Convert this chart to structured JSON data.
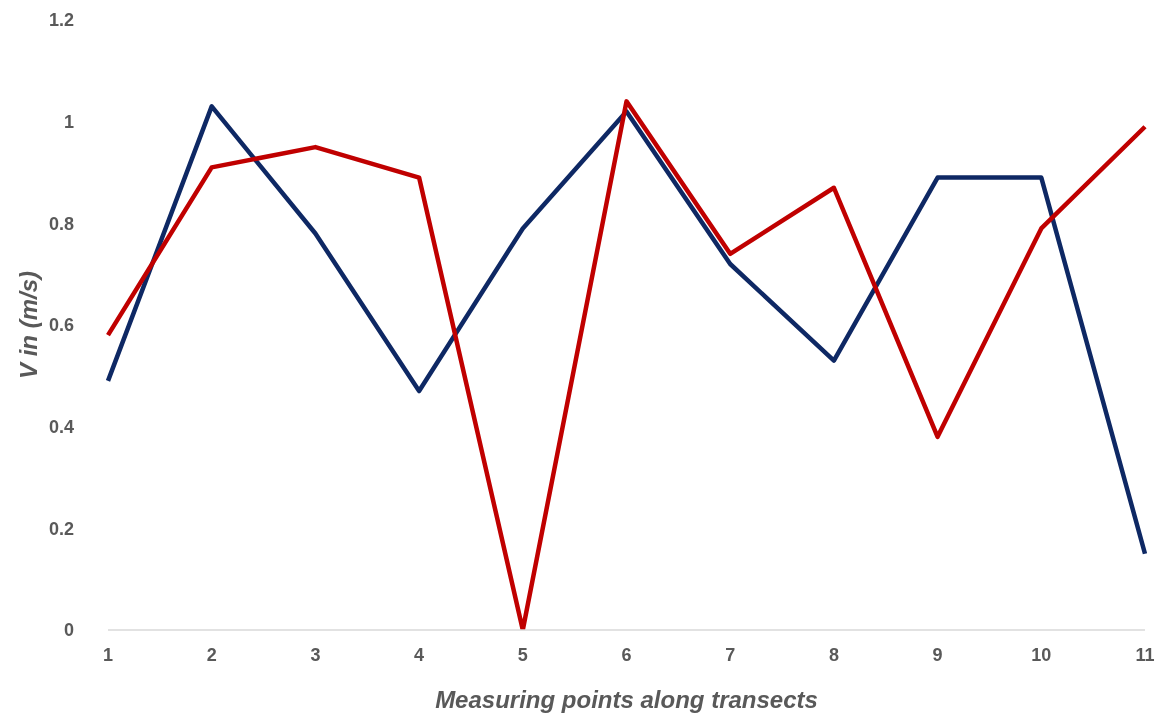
{
  "chart_data": {
    "type": "line",
    "xlabel": "Measuring points along transects",
    "ylabel": "V in (m/s)",
    "categories": [
      "1",
      "2",
      "3",
      "4",
      "5",
      "6",
      "7",
      "8",
      "9",
      "10",
      "11"
    ],
    "series": [
      {
        "color": "#0e2864",
        "values": [
          0.49,
          1.03,
          0.78,
          0.47,
          0.79,
          1.02,
          0.72,
          0.53,
          0.89,
          0.89,
          0.15
        ]
      },
      {
        "color": "#c00000",
        "values": [
          0.58,
          0.91,
          0.95,
          0.89,
          0,
          1.04,
          0.74,
          0.87,
          0.38,
          0.79,
          0.99
        ]
      }
    ],
    "ylim": [
      0,
      1.2
    ],
    "yticks": [
      0,
      0.2,
      0.4,
      0.6,
      0.8,
      1,
      1.2
    ],
    "grid": false,
    "legend": false,
    "marker": "none",
    "line_style": "solid"
  }
}
